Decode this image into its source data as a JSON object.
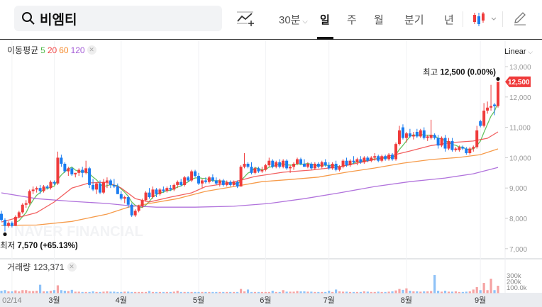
{
  "header": {
    "stock_name": "비엠티",
    "interval_select": "30분",
    "periods": [
      "일",
      "주",
      "월",
      "분기",
      "년"
    ],
    "active_period": "일",
    "icons": [
      "search-icon",
      "add-indicator-icon",
      "chevron-down-icon",
      "candle-type-icon",
      "pencil-icon"
    ]
  },
  "legend": {
    "ma_label": "이동평균",
    "ma_periods": [
      "5",
      "20",
      "60",
      "120"
    ],
    "ma_colors": [
      "#4cb846",
      "#f04444",
      "#f5892a",
      "#a35ad6"
    ],
    "scale_mode": "Linear",
    "volume_label": "거래량",
    "volume_value": "123,371"
  },
  "annotations": {
    "high_label": "최고",
    "high_value": "12,500 (0.00%)",
    "low_label": "최저",
    "low_value": "7,570 (+65.13%)",
    "last_price_tag": "12,500"
  },
  "watermark": "NAVER FINANCIAL",
  "colors": {
    "up": "#ef3b3b",
    "down": "#1a7cf0",
    "vol_up": "#f5a3a3",
    "vol_down": "#8ec2f7",
    "tag": "#ef3b3b"
  },
  "chart_data": {
    "type": "candlestick",
    "y_ticks": [
      "13,000",
      "12,000",
      "11,000",
      "10,000",
      "9,000",
      "8,000",
      "7,000"
    ],
    "y_tick_values": [
      13000,
      12000,
      11000,
      10000,
      9000,
      8000,
      7000
    ],
    "ylim": [
      7000,
      13000
    ],
    "volume_ticks": [
      "300k",
      "200k",
      "100.0k"
    ],
    "volume_tick_values": [
      300000,
      200000,
      100000
    ],
    "x_ticks": [
      {
        "label": "02/14",
        "index": 3
      },
      {
        "label": "3월",
        "index": 15
      },
      {
        "label": "4월",
        "index": 34
      },
      {
        "label": "5월",
        "index": 56
      },
      {
        "label": "6월",
        "index": 75
      },
      {
        "label": "7월",
        "index": 93
      },
      {
        "label": "8월",
        "index": 115
      },
      {
        "label": "9월",
        "index": 136
      }
    ],
    "ohlc": [
      [
        8150,
        8250,
        7900,
        7950
      ],
      [
        7950,
        8000,
        7570,
        7750
      ],
      [
        7750,
        7900,
        7700,
        7850
      ],
      [
        7850,
        7900,
        7700,
        7750
      ],
      [
        7750,
        8100,
        7750,
        8050
      ],
      [
        8050,
        8250,
        8000,
        8200
      ],
      [
        8200,
        8500,
        8150,
        8450
      ],
      [
        8450,
        8600,
        8350,
        8500
      ],
      [
        8500,
        8950,
        8450,
        8900
      ],
      [
        8900,
        9050,
        8800,
        8950
      ],
      [
        8950,
        9050,
        8850,
        9000
      ],
      [
        9000,
        9100,
        8800,
        8900
      ],
      [
        8900,
        9100,
        8850,
        9050
      ],
      [
        9050,
        9100,
        8950,
        9000
      ],
      [
        9000,
        9250,
        8950,
        9200
      ],
      [
        9200,
        9250,
        9100,
        9150
      ],
      [
        9150,
        10200,
        9100,
        10000
      ],
      [
        10000,
        10100,
        9700,
        9800
      ],
      [
        9800,
        9850,
        9500,
        9550
      ],
      [
        9550,
        9700,
        9400,
        9650
      ],
      [
        9650,
        9700,
        9400,
        9450
      ],
      [
        9450,
        9500,
        9350,
        9500
      ],
      [
        9500,
        9650,
        9400,
        9600
      ],
      [
        9600,
        9700,
        9350,
        9500
      ],
      [
        9500,
        9900,
        9450,
        9650
      ],
      [
        9650,
        9700,
        9000,
        9100
      ],
      [
        9100,
        9300,
        8900,
        8950
      ],
      [
        8950,
        9200,
        8800,
        9150
      ],
      [
        9150,
        9250,
        8800,
        8850
      ],
      [
        8850,
        9300,
        8800,
        9200
      ],
      [
        9200,
        9350,
        9000,
        9250
      ],
      [
        9250,
        9300,
        9000,
        9100
      ],
      [
        9100,
        9300,
        9000,
        9050
      ],
      [
        9050,
        9150,
        8800,
        8800
      ],
      [
        8800,
        8900,
        8600,
        8650
      ],
      [
        8650,
        8750,
        8500,
        8700
      ],
      [
        8700,
        8750,
        8350,
        8450
      ],
      [
        8450,
        8500,
        8050,
        8100
      ],
      [
        8100,
        8300,
        8050,
        8250
      ],
      [
        8250,
        8450,
        8200,
        8400
      ],
      [
        8400,
        8650,
        8350,
        8600
      ],
      [
        8600,
        8900,
        8550,
        8850
      ],
      [
        8850,
        9000,
        8650,
        8700
      ],
      [
        8700,
        9050,
        8650,
        8950
      ],
      [
        8950,
        9000,
        8700,
        8800
      ],
      [
        8800,
        9000,
        8750,
        8950
      ],
      [
        8950,
        9050,
        8850,
        8900
      ],
      [
        8900,
        9050,
        8850,
        9000
      ],
      [
        9000,
        9100,
        8900,
        8950
      ],
      [
        8950,
        9150,
        8900,
        9100
      ],
      [
        9100,
        9250,
        9000,
        9200
      ],
      [
        9200,
        9300,
        9050,
        9100
      ],
      [
        9100,
        9400,
        9050,
        9350
      ],
      [
        9350,
        9400,
        9200,
        9250
      ],
      [
        9250,
        9600,
        9200,
        9550
      ],
      [
        9550,
        9600,
        9350,
        9400
      ],
      [
        9400,
        9500,
        9100,
        9150
      ],
      [
        9150,
        9300,
        9000,
        9250
      ],
      [
        9250,
        9350,
        9150,
        9200
      ],
      [
        9200,
        9400,
        9150,
        9350
      ],
      [
        9350,
        9450,
        9200,
        9250
      ],
      [
        9250,
        9350,
        9100,
        9150
      ],
      [
        9150,
        9300,
        9050,
        9250
      ],
      [
        9250,
        9300,
        9050,
        9100
      ],
      [
        9100,
        9250,
        9050,
        9200
      ],
      [
        9200,
        9250,
        9050,
        9100
      ],
      [
        9100,
        9250,
        9050,
        9200
      ],
      [
        9200,
        9250,
        9000,
        9050
      ],
      [
        9050,
        9750,
        9050,
        9700
      ],
      [
        9700,
        10150,
        9650,
        9800
      ],
      [
        9800,
        9850,
        9650,
        9700
      ],
      [
        9700,
        9850,
        9450,
        9500
      ],
      [
        9500,
        9700,
        9450,
        9650
      ],
      [
        9650,
        9700,
        9500,
        9550
      ],
      [
        9550,
        9700,
        9500,
        9600
      ],
      [
        9600,
        9800,
        9550,
        9750
      ],
      [
        9750,
        10000,
        9700,
        9900
      ],
      [
        9900,
        9950,
        9650,
        9700
      ],
      [
        9700,
        9900,
        9650,
        9850
      ],
      [
        9850,
        9950,
        9650,
        9700
      ],
      [
        9700,
        9950,
        9650,
        9900
      ],
      [
        9900,
        9950,
        9600,
        9650
      ],
      [
        9650,
        9750,
        9500,
        9700
      ],
      [
        9700,
        9850,
        9600,
        9800
      ],
      [
        9800,
        10000,
        9750,
        9950
      ],
      [
        9950,
        10000,
        9750,
        9800
      ],
      [
        9800,
        9950,
        9700,
        9700
      ],
      [
        9700,
        9850,
        9650,
        9800
      ],
      [
        9800,
        9850,
        9600,
        9650
      ],
      [
        9650,
        9850,
        9600,
        9800
      ],
      [
        9800,
        9850,
        9650,
        9700
      ],
      [
        9700,
        9900,
        9650,
        9850
      ],
      [
        9850,
        9950,
        9700,
        9750
      ],
      [
        9750,
        9850,
        9600,
        9650
      ],
      [
        9650,
        9850,
        9600,
        9800
      ],
      [
        9800,
        9900,
        9550,
        9600
      ],
      [
        9600,
        9750,
        9550,
        9700
      ],
      [
        9700,
        9950,
        9650,
        9900
      ],
      [
        9900,
        10000,
        9700,
        9750
      ],
      [
        9750,
        9950,
        9700,
        9900
      ],
      [
        9900,
        10050,
        9800,
        9850
      ],
      [
        9850,
        10000,
        9750,
        9950
      ],
      [
        9950,
        10050,
        9800,
        9850
      ],
      [
        9850,
        10050,
        9800,
        10000
      ],
      [
        10000,
        10050,
        9850,
        9900
      ],
      [
        9900,
        10050,
        9850,
        10000
      ],
      [
        10000,
        10150,
        9900,
        10050
      ],
      [
        10050,
        10100,
        9850,
        9900
      ],
      [
        9900,
        10100,
        9850,
        10050
      ],
      [
        10050,
        10100,
        9900,
        9950
      ],
      [
        9950,
        10150,
        9900,
        10100
      ],
      [
        10100,
        10150,
        9900,
        9950
      ],
      [
        9950,
        10500,
        9900,
        10450
      ],
      [
        10450,
        11050,
        10400,
        10900
      ],
      [
        11000,
        11100,
        10600,
        10650
      ],
      [
        10650,
        10850,
        10500,
        10800
      ],
      [
        10800,
        10950,
        10650,
        10700
      ],
      [
        10700,
        10850,
        10600,
        10750
      ],
      [
        10850,
        10950,
        10650,
        10700
      ],
      [
        10700,
        10950,
        10650,
        10900
      ],
      [
        10900,
        11000,
        10600,
        10650
      ],
      [
        10650,
        10750,
        10550,
        10700
      ],
      [
        10650,
        11250,
        10600,
        10750
      ],
      [
        10750,
        10800,
        10600,
        10650
      ],
      [
        10650,
        10750,
        10300,
        10400
      ],
      [
        10400,
        10700,
        10350,
        10650
      ],
      [
        10650,
        10750,
        10200,
        10300
      ],
      [
        10300,
        10650,
        10250,
        10550
      ],
      [
        10550,
        10650,
        10200,
        10250
      ],
      [
        10250,
        10350,
        10200,
        10300
      ],
      [
        10250,
        10400,
        10200,
        10350
      ],
      [
        10350,
        10400,
        10250,
        10300
      ],
      [
        10300,
        10350,
        10100,
        10150
      ],
      [
        10150,
        10350,
        10100,
        10300
      ],
      [
        10300,
        10400,
        10200,
        10350
      ],
      [
        10350,
        11050,
        10300,
        10900
      ],
      [
        11200,
        11250,
        11000,
        11050
      ],
      [
        11050,
        11800,
        11000,
        11550
      ],
      [
        11550,
        11850,
        11450,
        11650
      ],
      [
        11650,
        12400,
        11550,
        11700
      ],
      [
        11750,
        11800,
        11400,
        11700
      ],
      [
        11700,
        12500,
        11650,
        12500
      ]
    ],
    "volume": [
      40000,
      50000,
      30000,
      30000,
      45000,
      30000,
      50000,
      50000,
      35000,
      35000,
      40000,
      140000,
      30000,
      30000,
      40000,
      50000,
      130000,
      50000,
      40000,
      35000,
      55000,
      25000,
      25000,
      20000,
      20000,
      20000,
      30000,
      20000,
      20000,
      25000,
      30000,
      25000,
      25000,
      20000,
      20000,
      25000,
      25000,
      20000,
      20000,
      20000,
      20000,
      20000,
      35000,
      20000,
      20000,
      20000,
      20000,
      20000,
      20000,
      25000,
      40000,
      20000,
      20000,
      20000,
      20000,
      20000,
      20000,
      20000,
      20000,
      20000,
      20000,
      20000,
      20000,
      20000,
      20000,
      20000,
      20000,
      20000,
      70000,
      30000,
      60000,
      20000,
      20000,
      20000,
      20000,
      20000,
      20000,
      40000,
      20000,
      20000,
      50000,
      25000,
      25000,
      25000,
      35000,
      30000,
      30000,
      25000,
      25000,
      20000,
      20000,
      20000,
      20000,
      40000,
      20000,
      60000,
      30000,
      25000,
      25000,
      20000,
      20000,
      20000,
      20000,
      30000,
      25000,
      20000,
      20000,
      25000,
      20000,
      20000,
      25000,
      30000,
      45000,
      70000,
      55000,
      80000,
      40000,
      30000,
      30000,
      25000,
      30000,
      30000,
      35000,
      300000,
      40000,
      25000,
      40000,
      25000,
      25000,
      30000,
      20000,
      20000,
      25000,
      30000,
      60000,
      100000,
      50000,
      170000,
      50000,
      240000,
      50000,
      123371
    ],
    "moving_averages": [
      {
        "name": "5",
        "color": "#4cb846",
        "compute": "sma",
        "period": 5
      },
      {
        "name": "20",
        "color": "#f04444",
        "points": [
          [
            0,
            7880
          ],
          [
            10,
            8190
          ],
          [
            15,
            8540
          ],
          [
            20,
            9000
          ],
          [
            25,
            9170
          ],
          [
            30,
            9190
          ],
          [
            34,
            9000
          ],
          [
            38,
            8650
          ],
          [
            42,
            8540
          ],
          [
            48,
            8700
          ],
          [
            54,
            8840
          ],
          [
            58,
            9050
          ],
          [
            65,
            9170
          ],
          [
            72,
            9380
          ],
          [
            80,
            9520
          ],
          [
            88,
            9590
          ],
          [
            96,
            9700
          ],
          [
            104,
            9890
          ],
          [
            110,
            10050
          ],
          [
            116,
            10220
          ],
          [
            122,
            10400
          ],
          [
            128,
            10500
          ],
          [
            134,
            10550
          ],
          [
            138,
            10640
          ],
          [
            141,
            10850
          ]
        ]
      },
      {
        "name": "60",
        "color": "#f5892a",
        "points": [
          [
            0,
            7770
          ],
          [
            10,
            7780
          ],
          [
            20,
            7900
          ],
          [
            30,
            8140
          ],
          [
            36,
            8370
          ],
          [
            42,
            8490
          ],
          [
            50,
            8650
          ],
          [
            58,
            8890
          ],
          [
            66,
            9050
          ],
          [
            74,
            9210
          ],
          [
            82,
            9280
          ],
          [
            90,
            9360
          ],
          [
            98,
            9520
          ],
          [
            106,
            9660
          ],
          [
            114,
            9820
          ],
          [
            122,
            9940
          ],
          [
            130,
            10010
          ],
          [
            136,
            10100
          ],
          [
            141,
            10290
          ]
        ]
      },
      {
        "name": "120",
        "color": "#a35ad6",
        "points": [
          [
            0,
            8840
          ],
          [
            10,
            8650
          ],
          [
            20,
            8560
          ],
          [
            30,
            8490
          ],
          [
            36,
            8420
          ],
          [
            44,
            8370
          ],
          [
            55,
            8370
          ],
          [
            66,
            8400
          ],
          [
            76,
            8490
          ],
          [
            86,
            8650
          ],
          [
            96,
            8840
          ],
          [
            106,
            9050
          ],
          [
            116,
            9210
          ],
          [
            126,
            9330
          ],
          [
            134,
            9470
          ],
          [
            141,
            9680
          ]
        ]
      }
    ]
  }
}
